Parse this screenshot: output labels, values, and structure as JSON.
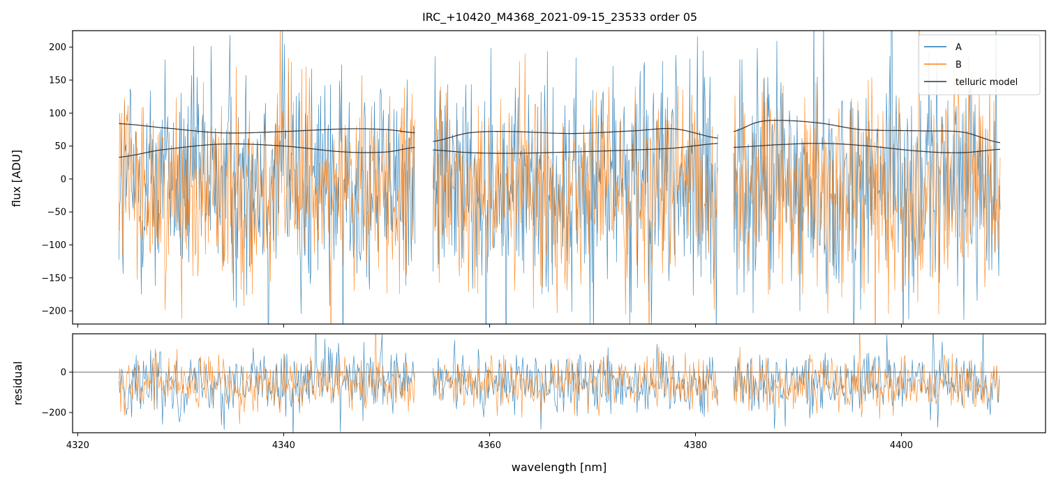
{
  "chart_data": [
    {
      "type": "line",
      "panel": "spectrum",
      "title": "IRC_+10420_M4368_2021-09-15_23533  order 05",
      "xlabel": "",
      "ylabel": "flux [ADU]",
      "xlim": [
        4319.5,
        4414.0
      ],
      "ylim": [
        -220,
        225
      ],
      "xticks": [
        4320,
        4340,
        4360,
        4380,
        4400
      ],
      "xtick_labels": [
        "",
        "",
        "",
        "",
        ""
      ],
      "yticks": [
        -200,
        -150,
        -100,
        -50,
        0,
        50,
        100,
        150,
        200
      ],
      "ytick_labels": [
        "−200",
        "−150",
        "−100",
        "−50",
        "0",
        "50",
        "100",
        "150",
        "200"
      ],
      "legend": {
        "position": "top-right",
        "entries": [
          "A",
          "B",
          "telluric model"
        ]
      },
      "segments": [
        {
          "x": [
            4324.0,
            4352.8
          ]
        },
        {
          "x": [
            4354.5,
            4382.2
          ]
        },
        {
          "x": [
            4383.7,
            4409.6
          ]
        }
      ],
      "series": [
        {
          "name": "A",
          "color": "#1f77b4",
          "style": "noisy spectrum",
          "center": -5,
          "noise_amplitude": 160
        },
        {
          "name": "B",
          "color": "#ff7f0e",
          "style": "noisy spectrum",
          "center": -15,
          "noise_amplitude": 130
        },
        {
          "name": "telluric model",
          "color": "#333333",
          "style": "smooth line",
          "curves": [
            {
              "x": [
                4324.0,
                4328,
                4334,
                4340,
                4346,
                4350,
                4352.8
              ],
              "y": [
                84,
                78,
                70,
                72,
                76,
                75,
                70
              ]
            },
            {
              "x": [
                4324.0,
                4328,
                4334,
                4340,
                4346,
                4350,
                4352.8
              ],
              "y": [
                33,
                44,
                53,
                50,
                41,
                41,
                48
              ]
            },
            {
              "x": [
                4354.5,
                4358,
                4362,
                4368,
                4374,
                4378,
                4382.2
              ],
              "y": [
                57,
                70,
                72,
                69,
                73,
                76,
                62
              ]
            },
            {
              "x": [
                4354.5,
                4358,
                4362,
                4368,
                4374,
                4378,
                4382.2
              ],
              "y": [
                44,
                40,
                39,
                41,
                44,
                47,
                54
              ]
            },
            {
              "x": [
                4383.7,
                4386,
                4388,
                4392,
                4396,
                4402,
                4406,
                4409.6
              ],
              "y": [
                72,
                86,
                89,
                85,
                75,
                73,
                71,
                55
              ]
            },
            {
              "x": [
                4383.7,
                4388,
                4392,
                4396,
                4402,
                4406,
                4409.6
              ],
              "y": [
                48,
                52,
                54,
                51,
                42,
                40,
                45
              ]
            }
          ]
        }
      ]
    },
    {
      "type": "line",
      "panel": "residual",
      "title": "",
      "xlabel": "wavelength [nm]",
      "ylabel": "residual",
      "xlim": [
        4319.5,
        4414.0
      ],
      "ylim": [
        -300,
        190
      ],
      "xticks": [
        4320,
        4340,
        4360,
        4380,
        4400
      ],
      "xtick_labels": [
        "4320",
        "4340",
        "4360",
        "4380",
        "4400"
      ],
      "yticks": [
        -200,
        0
      ],
      "ytick_labels": [
        "−200",
        "0"
      ],
      "zero_line": true,
      "series": [
        {
          "name": "A",
          "color": "#1f77b4",
          "style": "noisy residual",
          "center": -50,
          "noise_amplitude": 140
        },
        {
          "name": "B",
          "color": "#ff7f0e",
          "style": "noisy residual",
          "center": -55,
          "noise_amplitude": 115
        }
      ]
    }
  ]
}
